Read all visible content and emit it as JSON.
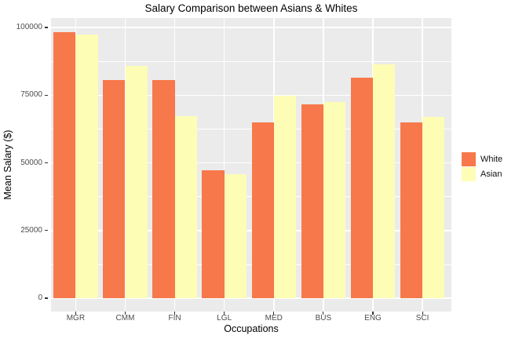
{
  "chart_data": {
    "type": "bar",
    "title": "Salary Comparison between Asians & Whites",
    "xlabel": "Occupations",
    "ylabel": "Mean Salary ($)",
    "categories": [
      "MGR",
      "CMM",
      "FIN",
      "LGL",
      "MED",
      "BUS",
      "ENG",
      "SCI"
    ],
    "series": [
      {
        "name": "White",
        "color": "#F7784B",
        "values": [
          98400,
          80600,
          80600,
          47200,
          65000,
          71500,
          81500,
          64800
        ]
      },
      {
        "name": "Asian",
        "color": "#FDFDB6",
        "values": [
          97300,
          85800,
          67200,
          45700,
          74800,
          72500,
          86300,
          66900
        ]
      }
    ],
    "ylim": [
      -4925,
      103425
    ],
    "yticks": [
      0,
      25000,
      50000,
      75000,
      100000
    ],
    "ytick_labels": [
      "0",
      "25000",
      "50000",
      "75000",
      "100000"
    ],
    "yminor": [
      12500,
      37500,
      62500,
      87500
    ],
    "grid": true,
    "legend_position": "right",
    "colors": {
      "panel_bg": "#EBEBEB",
      "grid": "#FFFFFF",
      "tick_text": "#4D4D4D",
      "tick_mark": "#333333",
      "text": "#000000",
      "page_bg": "#FFFFFF"
    }
  }
}
